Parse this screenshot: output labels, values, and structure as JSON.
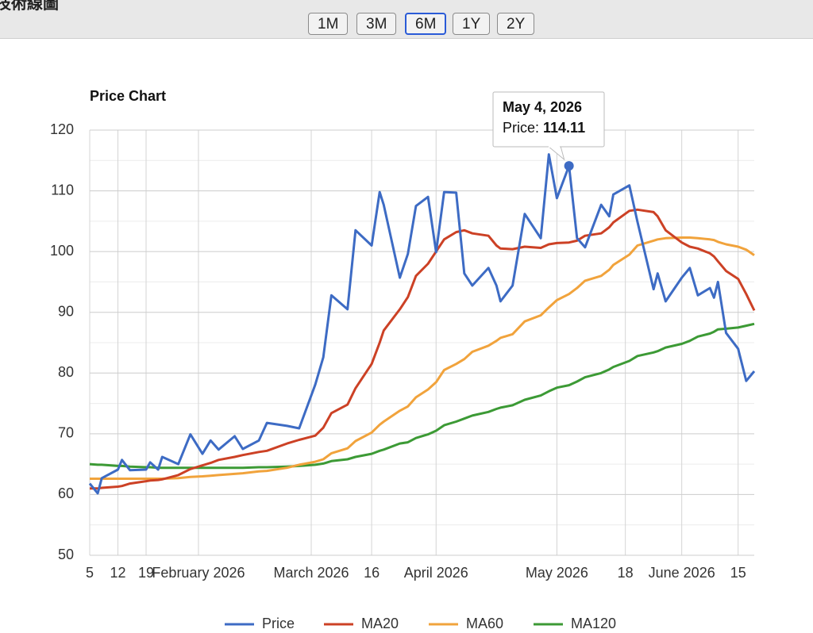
{
  "page_title": "技術線圖",
  "range_buttons": [
    "1M",
    "3M",
    "6M",
    "1Y",
    "2Y"
  ],
  "selected_range": "6M",
  "chart_data": {
    "type": "line",
    "title": "Price Chart",
    "x": [
      "2026-01-05",
      "2026-01-07",
      "2026-01-08",
      "2026-01-12",
      "2026-01-13",
      "2026-01-15",
      "2026-01-19",
      "2026-01-20",
      "2026-01-22",
      "2026-01-23",
      "2026-01-27",
      "2026-01-30",
      "2026-02-02",
      "2026-02-04",
      "2026-02-06",
      "2026-02-10",
      "2026-02-12",
      "2026-02-16",
      "2026-02-18",
      "2026-02-23",
      "2026-02-26",
      "2026-03-02",
      "2026-03-04",
      "2026-03-06",
      "2026-03-10",
      "2026-03-12",
      "2026-03-16",
      "2026-03-18",
      "2026-03-19",
      "2026-03-23",
      "2026-03-25",
      "2026-03-27",
      "2026-03-30",
      "2026-04-01",
      "2026-04-03",
      "2026-04-06",
      "2026-04-08",
      "2026-04-10",
      "2026-04-14",
      "2026-04-16",
      "2026-04-17",
      "2026-04-20",
      "2026-04-23",
      "2026-04-27",
      "2026-04-29",
      "2026-05-01",
      "2026-05-04",
      "2026-05-06",
      "2026-05-08",
      "2026-05-12",
      "2026-05-14",
      "2026-05-15",
      "2026-05-19",
      "2026-05-21",
      "2026-05-25",
      "2026-05-26",
      "2026-05-28",
      "2026-06-01",
      "2026-06-03",
      "2026-06-05",
      "2026-06-08",
      "2026-06-09",
      "2026-06-10",
      "2026-06-12",
      "2026-06-15",
      "2026-06-17",
      "2026-06-19"
    ],
    "series": [
      {
        "name": "Price",
        "color": "#3d6bc4",
        "values": [
          61.8,
          60.2,
          62.7,
          64.1,
          65.7,
          64.0,
          64.1,
          65.3,
          64.1,
          66.2,
          65.0,
          69.9,
          66.7,
          68.9,
          67.4,
          69.6,
          67.5,
          68.9,
          71.8,
          71.3,
          70.9,
          78.1,
          82.6,
          92.8,
          90.5,
          103.5,
          101.0,
          109.8,
          107.7,
          95.7,
          99.6,
          107.5,
          109.0,
          99.9,
          109.8,
          109.7,
          96.4,
          94.4,
          97.3,
          94.4,
          91.8,
          94.4,
          106.2,
          102.2,
          116.0,
          108.8,
          114.11,
          102.2,
          100.7,
          107.7,
          105.8,
          109.4,
          110.9,
          104.9,
          93.8,
          96.4,
          91.8,
          95.7,
          97.3,
          92.8,
          94.0,
          92.4,
          95.0,
          86.6,
          84.0,
          78.7,
          80.3
        ]
      },
      {
        "name": "MA20",
        "color": "#cc4125",
        "values": [
          61.0,
          61.0,
          61.1,
          61.3,
          61.4,
          61.8,
          62.2,
          62.3,
          62.4,
          62.5,
          63.2,
          64.2,
          64.8,
          65.2,
          65.7,
          66.2,
          66.5,
          67.0,
          67.2,
          68.4,
          69.0,
          69.7,
          71.0,
          73.4,
          74.8,
          77.5,
          81.5,
          85.0,
          87.0,
          90.5,
          92.5,
          96.0,
          98.0,
          100.0,
          102.0,
          103.2,
          103.5,
          103.0,
          102.6,
          101.0,
          100.5,
          100.4,
          100.8,
          100.6,
          101.2,
          101.4,
          101.5,
          101.8,
          102.6,
          103.0,
          104.0,
          104.8,
          106.7,
          106.9,
          106.5,
          105.8,
          103.5,
          101.5,
          100.8,
          100.5,
          99.7,
          99.2,
          98.4,
          96.8,
          95.5,
          93.0,
          90.3
        ]
      },
      {
        "name": "MA60",
        "color": "#f1a33c",
        "values": [
          62.6,
          62.6,
          62.6,
          62.6,
          62.6,
          62.6,
          62.6,
          62.6,
          62.6,
          62.6,
          62.7,
          62.9,
          63.0,
          63.1,
          63.2,
          63.4,
          63.5,
          63.8,
          63.9,
          64.4,
          64.9,
          65.4,
          65.8,
          66.8,
          67.6,
          68.8,
          70.2,
          71.5,
          72.0,
          73.8,
          74.5,
          76.0,
          77.3,
          78.5,
          80.5,
          81.5,
          82.3,
          83.5,
          84.5,
          85.3,
          85.8,
          86.4,
          88.5,
          89.5,
          90.8,
          92.0,
          93.0,
          94.0,
          95.2,
          96.0,
          97.0,
          97.8,
          99.5,
          101.0,
          101.8,
          102.0,
          102.2,
          102.3,
          102.3,
          102.2,
          102.0,
          101.9,
          101.6,
          101.2,
          100.8,
          100.3,
          99.4
        ]
      },
      {
        "name": "MA120",
        "color": "#3c9a35",
        "values": [
          65.0,
          64.9,
          64.9,
          64.7,
          64.7,
          64.6,
          64.5,
          64.5,
          64.4,
          64.4,
          64.4,
          64.4,
          64.4,
          64.4,
          64.4,
          64.4,
          64.4,
          64.5,
          64.5,
          64.6,
          64.7,
          64.9,
          65.1,
          65.5,
          65.8,
          66.2,
          66.7,
          67.2,
          67.4,
          68.4,
          68.6,
          69.3,
          69.9,
          70.5,
          71.4,
          72.0,
          72.5,
          73.0,
          73.6,
          74.1,
          74.3,
          74.7,
          75.6,
          76.3,
          77.0,
          77.6,
          78.0,
          78.6,
          79.3,
          80.0,
          80.6,
          81.0,
          82.0,
          82.8,
          83.4,
          83.6,
          84.2,
          84.8,
          85.3,
          86.0,
          86.5,
          86.8,
          87.2,
          87.3,
          87.5,
          87.8,
          88.1
        ]
      }
    ],
    "xlim": [
      "2026-01-05",
      "2026-06-19"
    ],
    "xticks": [
      {
        "value": "2026-01-05",
        "label": "5"
      },
      {
        "value": "2026-01-12",
        "label": "12"
      },
      {
        "value": "2026-01-19",
        "label": "19"
      },
      {
        "value": "2026-02-01",
        "label": "February 2026"
      },
      {
        "value": "2026-03-01",
        "label": "March 2026"
      },
      {
        "value": "2026-03-16",
        "label": "16"
      },
      {
        "value": "2026-04-01",
        "label": "April 2026"
      },
      {
        "value": "2026-05-01",
        "label": "May 2026"
      },
      {
        "value": "2026-05-18",
        "label": "18"
      },
      {
        "value": "2026-06-01",
        "label": "June 2026"
      },
      {
        "value": "2026-06-15",
        "label": "15"
      }
    ],
    "ylim": [
      50,
      120
    ],
    "yticks": [
      50,
      60,
      70,
      80,
      90,
      100,
      110,
      120
    ],
    "yminorticks": [
      55,
      65,
      75,
      85,
      95,
      105,
      115
    ],
    "grid": true,
    "legend": "bottom",
    "tooltip": {
      "series": 0,
      "index": 46,
      "title": "May 4, 2026",
      "label": "Price:",
      "value": 114.11
    }
  }
}
